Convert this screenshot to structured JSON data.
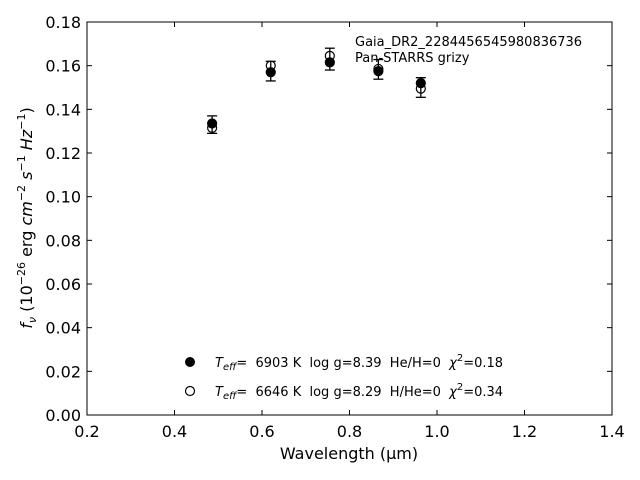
{
  "chart_data": {
    "type": "scatter",
    "annotation": [
      "Gaia_DR2_2284456545980836736",
      "Pan-STARRS grizy"
    ],
    "xlabel": "Wavelength (μm)",
    "ylabel": "fν (10⁻²⁶ erg cm⁻² s⁻¹ Hz⁻¹)",
    "xlim": [
      0.2,
      1.4
    ],
    "ylim": [
      0.0,
      0.18
    ],
    "xticks": [
      "0.2",
      "0.4",
      "0.6",
      "0.8",
      "1.0",
      "1.2",
      "1.4"
    ],
    "yticks": [
      "0.00",
      "0.02",
      "0.04",
      "0.06",
      "0.08",
      "0.10",
      "0.12",
      "0.14",
      "0.16",
      "0.18"
    ],
    "grid": false,
    "legend_position": "bottom-center",
    "observed": {
      "x": [
        0.486,
        0.62,
        0.755,
        0.866,
        0.963
      ],
      "y": [
        0.133,
        0.1575,
        0.163,
        0.1583,
        0.15
      ],
      "yerr": [
        0.004,
        0.0045,
        0.005,
        0.0045,
        0.0045
      ]
    },
    "series": [
      {
        "name": "Teff= 6903 K  log g=8.39  He/H=0  χ²=0.18",
        "marker": "filled-circle",
        "x": [
          0.486,
          0.62,
          0.755,
          0.866,
          0.963
        ],
        "y": [
          0.1335,
          0.157,
          0.1615,
          0.1575,
          0.152
        ]
      },
      {
        "name": "Teff= 6646 K  log g=8.29  H/He=0  χ²=0.34",
        "marker": "open-circle",
        "x": [
          0.486,
          0.62,
          0.755,
          0.866,
          0.963
        ],
        "y": [
          0.1315,
          0.16,
          0.1645,
          0.1585,
          0.1495
        ]
      }
    ],
    "legend": [
      {
        "marker": "filled-circle",
        "teff_label": "T",
        "teff_sub": "eff",
        "teff_value": "=  6903 K  log g=8.39  He/H=0  ",
        "chi_label": "χ",
        "chi_sup": "2",
        "chi_value": "=0.18"
      },
      {
        "marker": "open-circle",
        "teff_label": "T",
        "teff_sub": "eff",
        "teff_value": "=  6646 K  log g=8.29  H/He=0  ",
        "chi_label": "χ",
        "chi_sup": "2",
        "chi_value": "=0.34"
      }
    ]
  }
}
